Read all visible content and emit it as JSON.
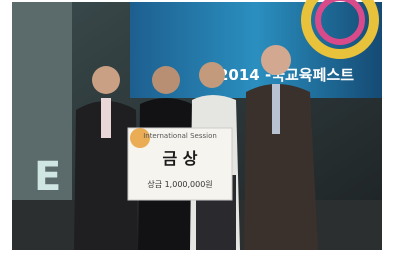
{
  "banner": {
    "title": "2014 -국교육페스트"
  },
  "sign": {
    "session": "International Session",
    "award": "금 상",
    "prize": "상금 1,000,000원"
  }
}
